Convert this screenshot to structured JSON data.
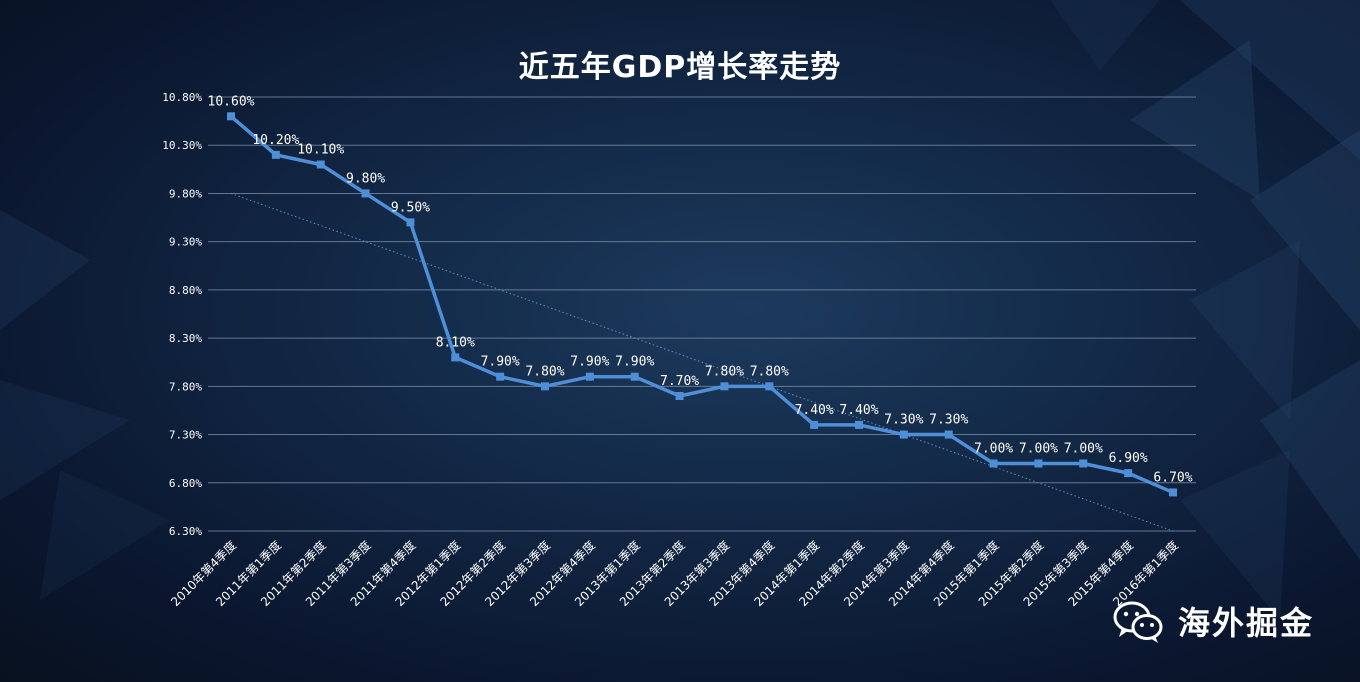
{
  "watermark": {
    "text": "海外掘金",
    "icon": "wechat-icon"
  },
  "colors": {
    "line": "#4f8fd8",
    "label": "#ffffff",
    "grid": "#7f93ad",
    "trend": "#5a8fc0"
  },
  "chart_data": {
    "type": "line",
    "title": "近五年GDP增长率走势",
    "xlabel": "",
    "ylabel": "",
    "ylim": [
      6.3,
      10.8
    ],
    "y_ticks": [
      "6.30%",
      "6.80%",
      "7.30%",
      "7.80%",
      "8.30%",
      "8.80%",
      "9.30%",
      "9.80%",
      "10.30%",
      "10.80%"
    ],
    "y_tick_values": [
      6.3,
      6.8,
      7.3,
      7.8,
      8.3,
      8.8,
      9.3,
      9.8,
      10.3,
      10.8
    ],
    "grid": true,
    "legend": "none",
    "categories": [
      "2010年第4季度",
      "2011年第1季度",
      "2011年第2季度",
      "2011年第3季度",
      "2011年第4季度",
      "2012年第1季度",
      "2012年第2季度",
      "2012年第3季度",
      "2012年第4季度",
      "2013年第1季度",
      "2013年第2季度",
      "2013年第3季度",
      "2013年第4季度",
      "2014年第1季度",
      "2014年第2季度",
      "2014年第3季度",
      "2014年第4季度",
      "2015年第1季度",
      "2015年第2季度",
      "2015年第3季度",
      "2015年第4季度",
      "2016年第1季度"
    ],
    "values": [
      10.6,
      10.2,
      10.1,
      9.8,
      9.5,
      8.1,
      7.9,
      7.8,
      7.9,
      7.9,
      7.7,
      7.8,
      7.8,
      7.4,
      7.4,
      7.3,
      7.3,
      7.0,
      7.0,
      7.0,
      6.9,
      6.7
    ],
    "data_labels": [
      "10.60%",
      "10.20%",
      "10.10%",
      "9.80%",
      "9.50%",
      "8.10%",
      "7.90%",
      "7.80%",
      "7.90%",
      "7.90%",
      "7.70%",
      "7.80%",
      "7.80%",
      "7.40%",
      "7.40%",
      "7.30%",
      "7.30%",
      "7.00%",
      "7.00%",
      "7.00%",
      "6.90%",
      "6.70%"
    ],
    "trendline": {
      "type": "linear",
      "style": "dotted",
      "start": 9.8,
      "end": 6.3
    }
  }
}
